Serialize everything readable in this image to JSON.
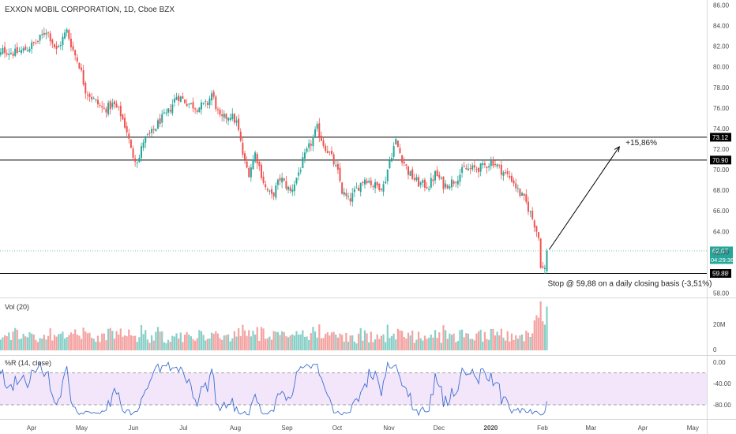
{
  "header": {
    "title": "EXXON MOBIL CORPORATION, 1D, Cboe BZX"
  },
  "colors": {
    "up": "#26a69a",
    "down": "#ef5350",
    "up_volume": "#89cfc7",
    "down_volume": "#f3a3a1",
    "wr_line": "#3d6fcf",
    "wr_band": "#f3e6fb",
    "current_price_bg": "#26a69a",
    "axis_text": "#4a4a4a",
    "level_line": "#000000"
  },
  "chart_data": [
    {
      "type": "candlestick",
      "title": "EXXON MOBIL CORPORATION, 1D, Cboe BZX",
      "x_tick_labels": [
        "Apr",
        "May",
        "Jun",
        "Jul",
        "Aug",
        "Sep",
        "Oct",
        "Nov",
        "Dec",
        "2020",
        "Feb",
        "Mar",
        "Apr",
        "May"
      ],
      "y_tick_labels": [
        "86.00",
        "84.00",
        "82.00",
        "80.00",
        "78.00",
        "76.00",
        "74.00",
        "72.00",
        "70.00",
        "68.00",
        "66.00",
        "64.00",
        "62.00",
        "60.00",
        "58.00"
      ],
      "ylim": [
        57.5,
        86.5
      ],
      "price_path": [
        {
          "date": "2019-03-11",
          "close": 80.5
        },
        {
          "date": "2019-03-15",
          "close": 81.6
        },
        {
          "date": "2019-03-22",
          "close": 81.3
        },
        {
          "date": "2019-03-29",
          "close": 81.7
        },
        {
          "date": "2019-04-05",
          "close": 82.5
        },
        {
          "date": "2019-04-10",
          "close": 83.6
        },
        {
          "date": "2019-04-16",
          "close": 81.5
        },
        {
          "date": "2019-04-22",
          "close": 83.5
        },
        {
          "date": "2019-04-26",
          "close": 81.5
        },
        {
          "date": "2019-04-30",
          "close": 80.0
        },
        {
          "date": "2019-05-03",
          "close": 77.8
        },
        {
          "date": "2019-05-08",
          "close": 76.8
        },
        {
          "date": "2019-05-14",
          "close": 75.8
        },
        {
          "date": "2019-05-20",
          "close": 76.3
        },
        {
          "date": "2019-05-24",
          "close": 75.5
        },
        {
          "date": "2019-05-28",
          "close": 73.8
        },
        {
          "date": "2019-05-31",
          "close": 71.5
        },
        {
          "date": "2019-06-04",
          "close": 70.8
        },
        {
          "date": "2019-06-07",
          "close": 72.8
        },
        {
          "date": "2019-06-12",
          "close": 73.5
        },
        {
          "date": "2019-06-17",
          "close": 74.8
        },
        {
          "date": "2019-06-21",
          "close": 75.3
        },
        {
          "date": "2019-06-27",
          "close": 77.2
        },
        {
          "date": "2019-07-03",
          "close": 76.5
        },
        {
          "date": "2019-07-09",
          "close": 76.0
        },
        {
          "date": "2019-07-15",
          "close": 76.3
        },
        {
          "date": "2019-07-18",
          "close": 77.4
        },
        {
          "date": "2019-07-23",
          "close": 74.8
        },
        {
          "date": "2019-07-29",
          "close": 75.3
        },
        {
          "date": "2019-08-02",
          "close": 74.5
        },
        {
          "date": "2019-08-06",
          "close": 71.0
        },
        {
          "date": "2019-08-09",
          "close": 69.6
        },
        {
          "date": "2019-08-13",
          "close": 71.6
        },
        {
          "date": "2019-08-19",
          "close": 68.2
        },
        {
          "date": "2019-08-23",
          "close": 67.3
        },
        {
          "date": "2019-08-28",
          "close": 69.2
        },
        {
          "date": "2019-09-03",
          "close": 67.8
        },
        {
          "date": "2019-09-06",
          "close": 68.9
        },
        {
          "date": "2019-09-11",
          "close": 71.0
        },
        {
          "date": "2019-09-16",
          "close": 72.8
        },
        {
          "date": "2019-09-19",
          "close": 74.0
        },
        {
          "date": "2019-09-23",
          "close": 72.4
        },
        {
          "date": "2019-09-27",
          "close": 71.4
        },
        {
          "date": "2019-10-02",
          "close": 69.4
        },
        {
          "date": "2019-10-04",
          "close": 67.8
        },
        {
          "date": "2019-10-08",
          "close": 66.9
        },
        {
          "date": "2019-10-14",
          "close": 68.4
        },
        {
          "date": "2019-10-18",
          "close": 69.2
        },
        {
          "date": "2019-10-23",
          "close": 68.4
        },
        {
          "date": "2019-10-29",
          "close": 68.4
        },
        {
          "date": "2019-11-01",
          "close": 70.6
        },
        {
          "date": "2019-11-05",
          "close": 72.8
        },
        {
          "date": "2019-11-08",
          "close": 71.4
        },
        {
          "date": "2019-11-13",
          "close": 69.6
        },
        {
          "date": "2019-11-19",
          "close": 68.6
        },
        {
          "date": "2019-11-25",
          "close": 68.4
        },
        {
          "date": "2019-11-29",
          "close": 69.6
        },
        {
          "date": "2019-12-04",
          "close": 68.4
        },
        {
          "date": "2019-12-10",
          "close": 68.9
        },
        {
          "date": "2019-12-16",
          "close": 70.0
        },
        {
          "date": "2019-12-20",
          "close": 70.0
        },
        {
          "date": "2019-12-27",
          "close": 70.2
        },
        {
          "date": "2020-01-02",
          "close": 70.8
        },
        {
          "date": "2020-01-08",
          "close": 69.8
        },
        {
          "date": "2020-01-14",
          "close": 69.0
        },
        {
          "date": "2020-01-17",
          "close": 68.0
        },
        {
          "date": "2020-01-22",
          "close": 66.8
        },
        {
          "date": "2020-01-27",
          "close": 64.8
        },
        {
          "date": "2020-01-30",
          "close": 63.2
        },
        {
          "date": "2020-01-31",
          "close": 60.5
        },
        {
          "date": "2020-02-03",
          "close": 60.2
        },
        {
          "date": "2020-02-04",
          "close": 62.07
        }
      ],
      "horizontal_levels": [
        {
          "value": 73.12,
          "label": "73.12"
        },
        {
          "value": 70.9,
          "label": "70.90"
        },
        {
          "value": 59.88,
          "label": "59.88"
        }
      ],
      "current_price": {
        "value": 62.07,
        "label": "62.07",
        "countdown": "04:29:36"
      },
      "annotations": [
        {
          "text": "+15,86%",
          "from": {
            "date": "2020-02-05",
            "price": 62.2
          },
          "to": {
            "date": "2020-03-18",
            "price": 72.2
          }
        },
        {
          "text": "Stop @ 59,88 on a daily closing basis (-3,51%)",
          "anchor": {
            "date": "2020-02-05",
            "price": 59.88
          }
        }
      ]
    },
    {
      "type": "bar",
      "title": "Vol (20)",
      "y_tick_labels": [
        "20M",
        "0"
      ],
      "note": "daily volume, colored by candle direction"
    },
    {
      "type": "line",
      "title": "%R (14, close)",
      "y_tick_labels": [
        "0.00",
        "-40.00",
        "-80.00"
      ],
      "ylim": [
        -100,
        0
      ],
      "bands": [
        -20,
        -80
      ]
    }
  ]
}
